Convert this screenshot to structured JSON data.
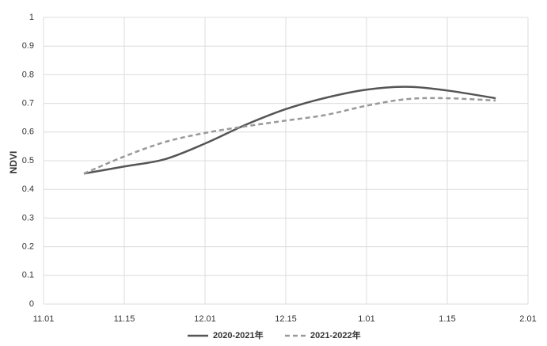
{
  "chart_data": {
    "type": "line",
    "y_label": "NDVI",
    "x": [
      0.5,
      1,
      1.5,
      2,
      2.5,
      3,
      3.5,
      4,
      4.5,
      5,
      5.6
    ],
    "series": [
      {
        "name": "2020-2021年",
        "color": "#555555",
        "dash": false,
        "values": [
          0.455,
          0.48,
          0.505,
          0.56,
          0.625,
          0.68,
          0.72,
          0.748,
          0.758,
          0.745,
          0.718
        ]
      },
      {
        "name": "2021-2022年",
        "color": "#999999",
        "dash": true,
        "values": [
          0.455,
          0.515,
          0.565,
          0.597,
          0.62,
          0.64,
          0.66,
          0.692,
          0.715,
          0.718,
          0.71
        ]
      }
    ],
    "xlim": [
      0,
      6
    ],
    "xticks": [
      {
        "value": 0,
        "label": "11.01"
      },
      {
        "value": 1,
        "label": "11.15"
      },
      {
        "value": 2,
        "label": "12.01"
      },
      {
        "value": 3,
        "label": "12.15"
      },
      {
        "value": 4,
        "label": "1.01"
      },
      {
        "value": 5,
        "label": "1.15"
      },
      {
        "value": 6,
        "label": "2.01"
      }
    ],
    "ylim": [
      0,
      1
    ],
    "yticks": [
      0,
      0.1,
      0.2,
      0.3,
      0.4,
      0.5,
      0.6,
      0.7,
      0.8,
      0.9,
      1
    ],
    "grid": true,
    "legend": "bottom"
  }
}
